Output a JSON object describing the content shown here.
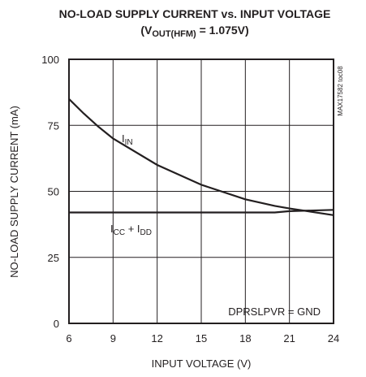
{
  "chart_data": {
    "type": "line",
    "title": [
      [
        "NO-LOAD SUPPLY CURRENT vs. INPUT VOLTAGE"
      ],
      [
        "(V",
        "OUT(HFM)",
        " = 1.075V)"
      ]
    ],
    "x_label": "INPUT VOLTAGE (V)",
    "y_label": "NO-LOAD SUPPLY CURRENT (mA)",
    "annotation": "DPRSLPVR = GND",
    "side_note": "MAX17582 toc08",
    "x": [
      6,
      7,
      8,
      9,
      12,
      15,
      18,
      20,
      21,
      24
    ],
    "series": [
      {
        "name": [
          "I",
          "IN"
        ],
        "color": "#231f20",
        "values": [
          85,
          79.5,
          74.5,
          70,
          60,
          52.5,
          47,
          44.5,
          43.5,
          41
        ]
      },
      {
        "name": [
          "I",
          "CC",
          " + I",
          "DD"
        ],
        "color": "#231f20",
        "values": [
          42,
          42,
          42,
          42,
          42,
          42,
          42,
          42,
          42.5,
          43
        ]
      }
    ],
    "xlim": [
      6,
      24
    ],
    "xticks": [
      6,
      9,
      12,
      15,
      18,
      21,
      24
    ],
    "ylim": [
      0,
      100
    ],
    "yticks": [
      0,
      25,
      50,
      75,
      100
    ],
    "grid": true
  }
}
